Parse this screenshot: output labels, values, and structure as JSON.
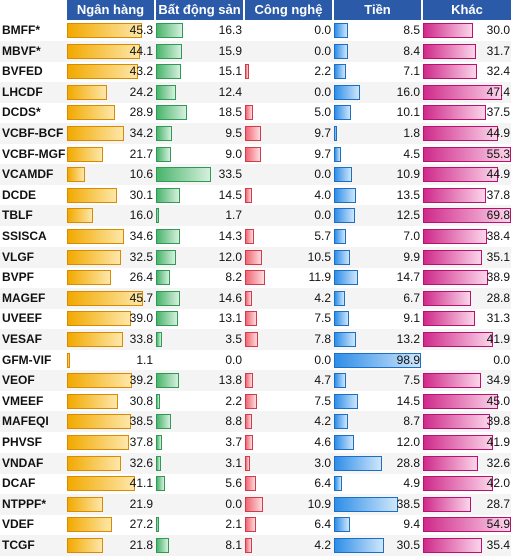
{
  "chart_data": {
    "type": "bar",
    "columns": [
      "Ngân hàng",
      "Bất động sản",
      "Công nghệ",
      "Tiền",
      "Khác"
    ],
    "colors": [
      "#f2a900",
      "#49b46c",
      "#f06572",
      "#2e8ee8",
      "#cf2a8a"
    ],
    "rows": [
      {
        "fund": "BMFF*",
        "values": [
          45.3,
          16.3,
          0.0,
          8.5,
          30.0
        ]
      },
      {
        "fund": "MBVF*",
        "values": [
          44.1,
          15.9,
          0.0,
          8.4,
          31.7
        ]
      },
      {
        "fund": "BVFED",
        "values": [
          43.2,
          15.1,
          2.2,
          7.1,
          32.4
        ]
      },
      {
        "fund": "LHCDF",
        "values": [
          24.2,
          12.4,
          0.0,
          16.0,
          47.4
        ]
      },
      {
        "fund": "DCDS*",
        "values": [
          28.9,
          18.5,
          5.0,
          10.1,
          37.5
        ]
      },
      {
        "fund": "VCBF-BCF",
        "values": [
          34.2,
          9.5,
          9.7,
          1.8,
          44.9
        ]
      },
      {
        "fund": "VCBF-MGF",
        "values": [
          21.7,
          9.0,
          9.7,
          4.5,
          55.3
        ]
      },
      {
        "fund": "VCAMDF",
        "values": [
          10.6,
          33.5,
          0.0,
          10.9,
          44.9
        ]
      },
      {
        "fund": "DCDE",
        "values": [
          30.1,
          14.5,
          4.0,
          13.5,
          37.8
        ]
      },
      {
        "fund": "TBLF",
        "values": [
          16.0,
          1.7,
          0.0,
          12.5,
          69.8
        ]
      },
      {
        "fund": "SSISCA",
        "values": [
          34.6,
          14.3,
          5.7,
          7.0,
          38.4
        ]
      },
      {
        "fund": "VLGF",
        "values": [
          32.5,
          12.0,
          10.5,
          9.9,
          35.1
        ]
      },
      {
        "fund": "BVPF",
        "values": [
          26.4,
          8.2,
          11.9,
          14.7,
          38.9
        ]
      },
      {
        "fund": "MAGEF",
        "values": [
          45.7,
          14.6,
          4.2,
          6.7,
          28.8
        ]
      },
      {
        "fund": "UVEEF",
        "values": [
          39.0,
          13.1,
          7.5,
          9.1,
          31.3
        ]
      },
      {
        "fund": "VESAF",
        "values": [
          33.8,
          3.5,
          7.8,
          13.2,
          41.9
        ]
      },
      {
        "fund": "GFM-VIF",
        "values": [
          1.1,
          0.0,
          0.0,
          98.9,
          0.0
        ]
      },
      {
        "fund": "VEOF",
        "values": [
          39.2,
          13.8,
          4.7,
          7.5,
          34.9
        ]
      },
      {
        "fund": "VMEEF",
        "values": [
          30.8,
          2.2,
          7.5,
          14.5,
          45.0
        ]
      },
      {
        "fund": "MAFEQI",
        "values": [
          38.5,
          8.8,
          4.2,
          8.7,
          39.8
        ]
      },
      {
        "fund": "PHVSF",
        "values": [
          37.8,
          3.7,
          4.6,
          12.0,
          41.9
        ]
      },
      {
        "fund": "VNDAF",
        "values": [
          32.6,
          3.1,
          3.0,
          28.8,
          32.6
        ]
      },
      {
        "fund": "DCAF",
        "values": [
          41.1,
          5.6,
          6.4,
          4.9,
          42.0
        ]
      },
      {
        "fund": "NTPPF*",
        "values": [
          21.9,
          0.0,
          10.9,
          38.5,
          28.7
        ]
      },
      {
        "fund": "VDEF",
        "values": [
          27.2,
          2.1,
          6.4,
          9.4,
          54.9
        ]
      },
      {
        "fund": "TCGF",
        "values": [
          21.8,
          8.1,
          4.2,
          30.5,
          35.4
        ]
      }
    ]
  }
}
